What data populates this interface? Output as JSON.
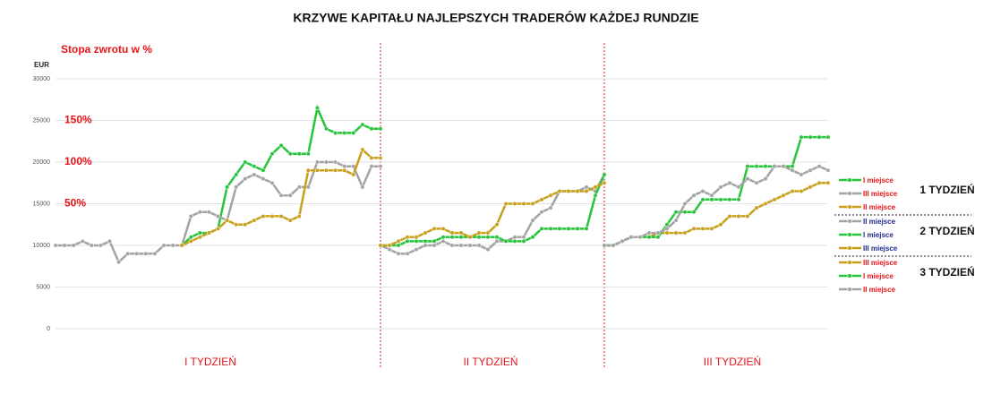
{
  "chart_data": {
    "type": "line",
    "title": "KRZYWE KAPITAŁU NAJLEPSZYCH TRADERÓW KAŻDEJ RUNDZIE",
    "subtitle": "Stopa zwrotu w %",
    "ylabel": "EUR",
    "ylim": [
      0,
      30000
    ],
    "yticks": [
      0,
      5000,
      10000,
      15000,
      20000,
      25000,
      30000
    ],
    "grid": true,
    "return_labels": [
      {
        "value": 25000,
        "label": "150%"
      },
      {
        "value": 20000,
        "label": "100%"
      },
      {
        "value": 15000,
        "label": "50%"
      }
    ],
    "legend": "right",
    "panels": [
      {
        "label": "I TYDZIEŃ",
        "legend_title": "1 TYDZIEŃ",
        "series": [
          {
            "name": "I miejsce",
            "color": "#27c43c",
            "label_color": "#e8141a",
            "values": [
              null,
              null,
              null,
              null,
              null,
              null,
              null,
              null,
              null,
              null,
              null,
              null,
              null,
              null,
              10000,
              11000,
              11500,
              11500,
              12000,
              17000,
              18500,
              20000,
              19500,
              19000,
              21000,
              22000,
              21000,
              21000,
              21000,
              26500,
              24000,
              23500,
              23500,
              23500,
              24500,
              24000,
              24000
            ]
          },
          {
            "name": "III miejsce",
            "color": "#a3a3a3",
            "label_color": "#e8141a",
            "values": [
              10000,
              10000,
              10000,
              10500,
              10000,
              10000,
              10500,
              8000,
              9000,
              9000,
              9000,
              9000,
              10000,
              10000,
              10000,
              13500,
              14000,
              14000,
              13500,
              13000,
              17000,
              18000,
              18500,
              18000,
              17500,
              16000,
              16000,
              17000,
              17000,
              20000,
              20000,
              20000,
              19500,
              19500,
              17000,
              19500,
              19500
            ]
          },
          {
            "name": "II miejsce",
            "color": "#c8a01c",
            "label_color": "#e8141a",
            "values": [
              null,
              null,
              null,
              null,
              null,
              null,
              null,
              null,
              null,
              null,
              null,
              null,
              null,
              null,
              10000,
              10500,
              11000,
              11500,
              12000,
              13000,
              12500,
              12500,
              13000,
              13500,
              13500,
              13500,
              13000,
              13500,
              19000,
              19000,
              19000,
              19000,
              19000,
              18500,
              21500,
              20500,
              20500
            ]
          }
        ]
      },
      {
        "label": "II TYDZIEŃ",
        "legend_title": "2 TYDZIEŃ",
        "series": [
          {
            "name": "II miejsce",
            "color": "#a3a3a3",
            "label_color": "#1f2a8c",
            "values": [
              10000,
              9500,
              9000,
              9000,
              9500,
              10000,
              10000,
              10500,
              10000,
              10000,
              10000,
              10000,
              9500,
              10500,
              10500,
              11000,
              11000,
              13000,
              14000,
              14500,
              16500,
              16500,
              16500,
              17000,
              16500,
              18500
            ]
          },
          {
            "name": "I miejsce",
            "color": "#27c43c",
            "label_color": "#1f2a8c",
            "values": [
              10000,
              10000,
              10000,
              10500,
              10500,
              10500,
              10500,
              11000,
              11000,
              11000,
              11000,
              11000,
              11000,
              11000,
              10500,
              10500,
              10500,
              11000,
              12000,
              12000,
              12000,
              12000,
              12000,
              12000,
              16000,
              18500
            ]
          },
          {
            "name": "III miejsce",
            "color": "#c8a01c",
            "label_color": "#1f2a8c",
            "values": [
              10000,
              10000,
              10500,
              11000,
              11000,
              11500,
              12000,
              12000,
              11500,
              11500,
              11000,
              11500,
              11500,
              12500,
              15000,
              15000,
              15000,
              15000,
              15500,
              16000,
              16500,
              16500,
              16500,
              16500,
              17000,
              17500
            ]
          }
        ]
      },
      {
        "label": "III TYDZIEŃ",
        "legend_title": "3 TYDZIEŃ",
        "series": [
          {
            "name": "III miejsce",
            "color": "#c8a01c",
            "label_color": "#e8141a",
            "values": [
              10000,
              10000,
              10500,
              11000,
              11000,
              11000,
              11500,
              11500,
              11500,
              11500,
              12000,
              12000,
              12000,
              12500,
              13500,
              13500,
              13500,
              14500,
              15000,
              15500,
              16000,
              16500,
              16500,
              17000,
              17500,
              17500
            ]
          },
          {
            "name": "I miejsce",
            "color": "#27c43c",
            "label_color": "#e8141a",
            "values": [
              10000,
              10000,
              10500,
              11000,
              11000,
              11000,
              11000,
              12500,
              14000,
              14000,
              14000,
              15500,
              15500,
              15500,
              15500,
              15500,
              19500,
              19500,
              19500,
              19500,
              19500,
              19500,
              23000,
              23000,
              23000,
              23000
            ]
          },
          {
            "name": "II miejsce",
            "color": "#a3a3a3",
            "label_color": "#e8141a",
            "values": [
              10000,
              10000,
              10500,
              11000,
              11000,
              11500,
              11500,
              12000,
              13000,
              15000,
              16000,
              16500,
              16000,
              17000,
              17500,
              17000,
              18000,
              17500,
              18000,
              19500,
              19500,
              19000,
              18500,
              19000,
              19500,
              19000
            ]
          }
        ]
      }
    ]
  }
}
